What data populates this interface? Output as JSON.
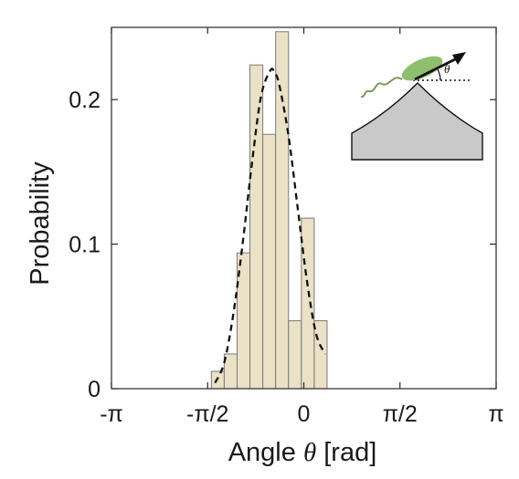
{
  "chart_data": {
    "type": "bar",
    "xlabel_prefix": "Angle ",
    "xlabel_symbol": "θ",
    "xlabel_suffix": " [rad]",
    "ylabel": "Probability",
    "xlim": [
      -3.14159,
      3.14159
    ],
    "ylim": [
      0,
      0.25
    ],
    "x_ticks": [
      {
        "value": -3.14159,
        "label": "-π"
      },
      {
        "value": -1.5708,
        "label": "-π/2"
      },
      {
        "value": 0,
        "label": "0"
      },
      {
        "value": 1.5708,
        "label": "π/2"
      },
      {
        "value": 3.14159,
        "label": "π"
      }
    ],
    "y_ticks": [
      {
        "value": 0,
        "label": "0"
      },
      {
        "value": 0.1,
        "label": "0.1"
      },
      {
        "value": 0.2,
        "label": "0.2"
      }
    ],
    "grid": false,
    "bar_color": "#eae1c6",
    "bar_edge_color": "#7a7a7a",
    "bins": [
      {
        "x0": -1.51,
        "x1": -1.3,
        "value": 0.012
      },
      {
        "x0": -1.3,
        "x1": -1.09,
        "value": 0.024
      },
      {
        "x0": -1.09,
        "x1": -0.88,
        "value": 0.094
      },
      {
        "x0": -0.88,
        "x1": -0.67,
        "value": 0.224
      },
      {
        "x0": -0.67,
        "x1": -0.46,
        "value": 0.176
      },
      {
        "x0": -0.46,
        "x1": -0.25,
        "value": 0.247
      },
      {
        "x0": -0.25,
        "x1": -0.04,
        "value": 0.047
      },
      {
        "x0": -0.04,
        "x1": 0.17,
        "value": 0.118
      },
      {
        "x0": 0.17,
        "x1": 0.38,
        "value": 0.047
      }
    ],
    "fit_curve": {
      "style": "dashed",
      "color": "#111111",
      "x": [
        -1.45,
        -1.3,
        -1.15,
        -1.0,
        -0.85,
        -0.7,
        -0.55,
        -0.48,
        -0.4,
        -0.25,
        -0.1,
        0.05,
        0.2,
        0.35
      ],
      "y": [
        0.004,
        0.018,
        0.052,
        0.1,
        0.155,
        0.202,
        0.22,
        0.219,
        0.21,
        0.175,
        0.125,
        0.075,
        0.038,
        0.024
      ]
    }
  },
  "inset": {
    "angle_label": "θ",
    "colors": {
      "surface": "#c9c9c9",
      "bacterium": "#8fbf6e",
      "flagellum": "#7a9a5a",
      "arrow": "#111111"
    }
  }
}
